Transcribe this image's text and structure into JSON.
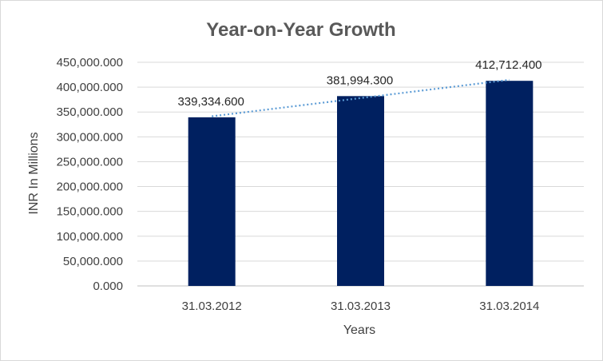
{
  "chart_data": {
    "type": "bar",
    "title": "Year-on-Year Growth",
    "xlabel": "Years",
    "ylabel": "INR In Millions",
    "categories": [
      "31.03.2012",
      "31.03.2013",
      "31.03.2014"
    ],
    "values": [
      339334.6,
      381994.3,
      412712.4
    ],
    "data_labels": [
      "339,334.600",
      "381,994.300",
      "412,712.400"
    ],
    "ylim": [
      0,
      450000
    ],
    "yticks": [
      0,
      50000,
      100000,
      150000,
      200000,
      250000,
      300000,
      350000,
      400000,
      450000
    ],
    "ytick_labels": [
      "0.000",
      "50,000.000",
      "100,000.000",
      "150,000.000",
      "200,000.000",
      "250,000.000",
      "300,000.000",
      "350,000.000",
      "400,000.000",
      "450,000.000"
    ],
    "bar_color": "#002060",
    "trendline": {
      "type": "linear",
      "color": "#5b9bd5",
      "style": "dotted"
    },
    "grid": true,
    "legend": "none"
  }
}
